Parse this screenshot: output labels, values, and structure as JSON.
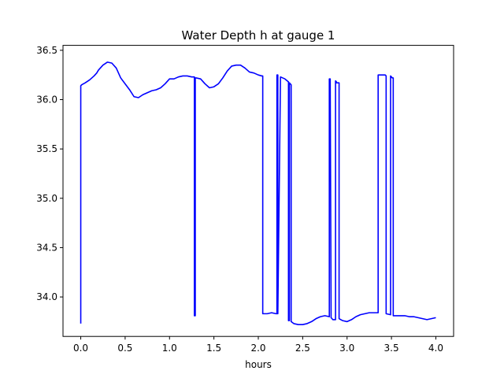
{
  "chart_data": {
    "type": "line",
    "title": "Water Depth h at gauge 1",
    "xlabel": "hours",
    "ylabel": "",
    "xlim": [
      -0.2,
      4.2
    ],
    "ylim": [
      33.6,
      36.55
    ],
    "xticks": [
      0.0,
      0.5,
      1.0,
      1.5,
      2.0,
      2.5,
      3.0,
      3.5,
      4.0
    ],
    "xtick_labels": [
      "0.0",
      "0.5",
      "1.0",
      "1.5",
      "2.0",
      "2.5",
      "3.0",
      "3.5",
      "4.0"
    ],
    "yticks": [
      34.0,
      34.5,
      35.0,
      35.5,
      36.0,
      36.5
    ],
    "ytick_labels": [
      "34.0",
      "34.5",
      "35.0",
      "35.5",
      "36.0",
      "36.5"
    ],
    "grid": false,
    "legend": "none",
    "series": [
      {
        "color": "#0000ff",
        "x": [
          0.0,
          0.0,
          0.01,
          0.05,
          0.1,
          0.15,
          0.18,
          0.2,
          0.22,
          0.25,
          0.3,
          0.35,
          0.4,
          0.45,
          0.5,
          0.55,
          0.6,
          0.65,
          0.7,
          0.75,
          0.8,
          0.85,
          0.9,
          0.95,
          1.0,
          1.05,
          1.1,
          1.15,
          1.2,
          1.25,
          1.28,
          1.28,
          1.29,
          1.29,
          1.3,
          1.35,
          1.4,
          1.45,
          1.5,
          1.55,
          1.6,
          1.65,
          1.7,
          1.75,
          1.8,
          1.85,
          1.9,
          1.95,
          2.0,
          2.04,
          2.05,
          2.05,
          2.1,
          2.15,
          2.2,
          2.21,
          2.21,
          2.22,
          2.22,
          2.25,
          2.3,
          2.34,
          2.34,
          2.35,
          2.35,
          2.37,
          2.37,
          2.4,
          2.45,
          2.5,
          2.55,
          2.6,
          2.65,
          2.7,
          2.75,
          2.8,
          2.8,
          2.81,
          2.81,
          2.82,
          2.83,
          2.84,
          2.87,
          2.87,
          2.88,
          2.88,
          2.9,
          2.91,
          2.91,
          2.95,
          3.0,
          3.05,
          3.1,
          3.15,
          3.2,
          3.25,
          3.3,
          3.35,
          3.35,
          3.36,
          3.43,
          3.44,
          3.44,
          3.49,
          3.49,
          3.5,
          3.51,
          3.52,
          3.52,
          3.6,
          3.65,
          3.7,
          3.75,
          3.8,
          3.85,
          3.9,
          3.95,
          4.0
        ],
        "y": [
          33.73,
          36.14,
          36.15,
          36.17,
          36.2,
          36.24,
          36.27,
          36.3,
          36.32,
          36.35,
          36.38,
          36.37,
          36.32,
          36.22,
          36.16,
          36.1,
          36.03,
          36.02,
          36.05,
          36.07,
          36.09,
          36.1,
          36.12,
          36.16,
          36.21,
          36.21,
          36.23,
          36.24,
          36.24,
          36.23,
          36.23,
          33.81,
          33.81,
          36.22,
          36.22,
          36.21,
          36.16,
          36.12,
          36.13,
          36.16,
          36.22,
          36.29,
          36.34,
          36.35,
          36.35,
          36.32,
          36.28,
          36.27,
          36.25,
          36.24,
          36.24,
          33.83,
          33.83,
          33.84,
          33.83,
          33.83,
          36.25,
          36.25,
          33.83,
          36.23,
          36.21,
          36.18,
          33.76,
          33.76,
          36.17,
          36.15,
          33.75,
          33.73,
          33.72,
          33.72,
          33.73,
          33.75,
          33.78,
          33.8,
          33.81,
          33.8,
          36.21,
          36.21,
          36.2,
          33.79,
          33.78,
          33.77,
          33.77,
          36.19,
          36.18,
          36.17,
          36.17,
          36.17,
          33.78,
          33.76,
          33.75,
          33.77,
          33.8,
          33.82,
          33.83,
          33.84,
          33.84,
          33.84,
          36.25,
          36.25,
          36.25,
          36.24,
          33.83,
          33.82,
          36.24,
          36.23,
          36.22,
          36.22,
          33.81,
          33.81,
          33.81,
          33.8,
          33.8,
          33.79,
          33.78,
          33.77,
          33.78,
          33.79
        ]
      }
    ]
  }
}
